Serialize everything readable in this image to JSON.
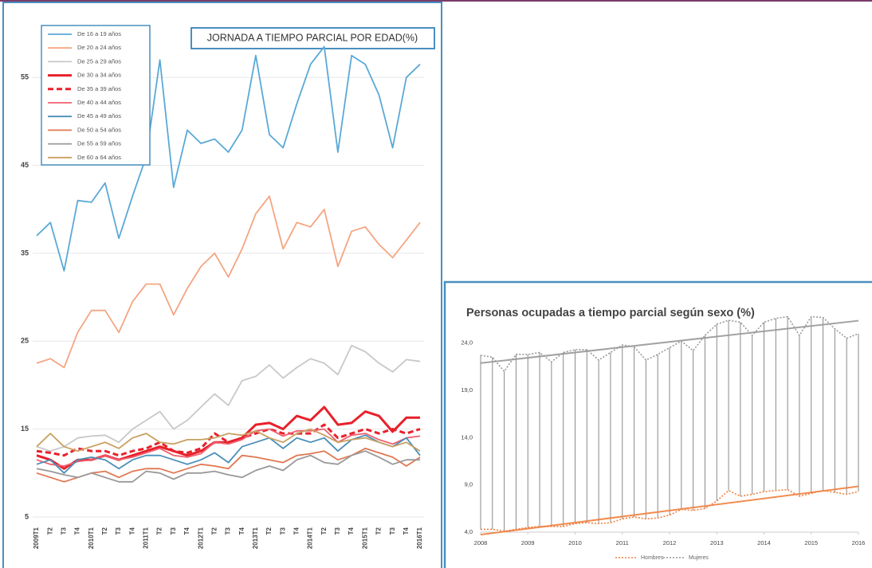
{
  "chart_data": [
    {
      "type": "line",
      "title": "JORNADA A TIEMPO PARCIAL POR EDAD(%)",
      "categories": [
        "2009T1",
        "T2",
        "T3",
        "T4",
        "2010T1",
        "T2",
        "T3",
        "T4",
        "2011T1",
        "T2",
        "T3",
        "T4",
        "2012T1",
        "T2",
        "T3",
        "T4",
        "2013T1",
        "T2",
        "T3",
        "T4",
        "2014T1",
        "T2",
        "T3",
        "T4",
        "2015T1",
        "T2",
        "T3",
        "T4",
        "2016T1"
      ],
      "ylim": [
        4,
        62
      ],
      "yticks": [
        5,
        15,
        25,
        35,
        45,
        55
      ],
      "grid": true,
      "legend": "upper left",
      "series": [
        {
          "name": "De 16 a 19 años",
          "color": "#5aa9d6",
          "values": [
            37,
            38.5,
            33,
            41,
            40.8,
            43,
            36.7,
            41.5,
            46,
            57,
            42.5,
            49,
            47.5,
            48,
            46.5,
            49,
            57.5,
            48.5,
            47,
            52,
            56.5,
            58.5,
            46.5,
            57.5,
            56.5,
            53,
            47,
            55,
            56.5
          ]
        },
        {
          "name": "De 20 a 24 años",
          "color": "#f4a582",
          "values": [
            22.5,
            23,
            22,
            26,
            28.5,
            28.5,
            26,
            29.5,
            31.5,
            31.5,
            28,
            31,
            33.5,
            35,
            32.3,
            35.5,
            39.5,
            41.5,
            35.5,
            38.5,
            38,
            40,
            33.5,
            37.5,
            38,
            36,
            34.5,
            36.5,
            38.5
          ]
        },
        {
          "name": "De 25 a 29 años",
          "color": "#c8c8c8",
          "values": [
            13,
            12.5,
            13,
            14,
            14.2,
            14.3,
            13.5,
            15,
            16,
            17,
            15,
            16,
            17.5,
            19,
            17.7,
            20.5,
            21,
            22.3,
            20.8,
            22,
            23,
            22.5,
            21.2,
            24.5,
            23.8,
            22.5,
            21.5,
            22.9,
            22.7
          ]
        },
        {
          "name": "De 30 a 34 años",
          "color": "#e8202a",
          "width": 3,
          "values": [
            12,
            11.5,
            10.5,
            11.5,
            11.5,
            12,
            11.5,
            12,
            12.5,
            13,
            12.5,
            12,
            12.5,
            13.5,
            13.5,
            14,
            15.5,
            15.7,
            15,
            16.5,
            16,
            17.5,
            15.5,
            15.7,
            17,
            16.5,
            14.7,
            16.3,
            16.3
          ]
        },
        {
          "name": "De 35 a 39 años",
          "color": "#e8202a",
          "width": 3,
          "dashed": true,
          "values": [
            12.5,
            12.3,
            12,
            12.8,
            12.5,
            12.5,
            12,
            12.5,
            12.8,
            13.5,
            12.5,
            12.3,
            12.8,
            14.5,
            13.5,
            14,
            14.5,
            15,
            14.5,
            14.5,
            14.5,
            15.5,
            14,
            14.5,
            15,
            14.5,
            15,
            14.5,
            15
          ]
        },
        {
          "name": "De 40 a 44 años",
          "color": "#f06070",
          "values": [
            11.5,
            11,
            10.8,
            11.3,
            11.5,
            12,
            11.5,
            11.8,
            12.3,
            12.8,
            12,
            11.8,
            12.2,
            13.5,
            13.3,
            13.8,
            14.8,
            15,
            14.2,
            14.8,
            14.8,
            15,
            13.5,
            14.3,
            14.5,
            13.8,
            13.3,
            14,
            14.2
          ]
        },
        {
          "name": "De 45 a 49 años",
          "color": "#4a8fb8",
          "values": [
            11,
            11.5,
            10,
            11.5,
            11.8,
            11.5,
            10.5,
            11.5,
            12,
            12,
            11.5,
            11,
            11.5,
            12.3,
            11.2,
            13,
            13.5,
            14,
            12.8,
            14,
            13.5,
            14,
            12.5,
            13.8,
            14.3,
            13.5,
            13,
            14,
            12
          ]
        },
        {
          "name": "De 50 a 54 años",
          "color": "#e07850",
          "values": [
            10,
            9.5,
            9,
            9.5,
            10,
            10.2,
            9.5,
            10.2,
            10.5,
            10.5,
            10,
            10.5,
            11,
            10.8,
            10.5,
            12,
            11.8,
            11.5,
            11.2,
            12,
            12.2,
            12.5,
            11.5,
            12,
            12.8,
            12.3,
            11.8,
            10.8,
            11.8
          ]
        },
        {
          "name": "De 55 a 59 años",
          "color": "#999999",
          "values": [
            10.5,
            10.2,
            9.8,
            9.5,
            10,
            9.5,
            9,
            9,
            10.2,
            10,
            9.3,
            10,
            10,
            10.2,
            9.8,
            9.5,
            10.3,
            10.8,
            10.3,
            11.5,
            12,
            11.2,
            11,
            12,
            12.5,
            11.8,
            11,
            11.5,
            11.5
          ]
        },
        {
          "name": "De 60 a 64 años",
          "color": "#c8a060",
          "values": [
            13,
            14.5,
            13,
            12.5,
            13,
            13.5,
            12.8,
            14,
            14.5,
            13.5,
            13.3,
            13.8,
            13.8,
            14,
            14.5,
            14.3,
            14.8,
            14,
            13.5,
            14.5,
            15,
            14.3,
            13.5,
            13.8,
            14,
            13.5,
            13,
            13.5,
            12.5
          ]
        }
      ]
    },
    {
      "type": "line",
      "title": "Personas ocupadas a tiempo parcial según sexo (%)",
      "x": [
        2008,
        2008.25,
        2008.5,
        2008.75,
        2009,
        2009.25,
        2009.5,
        2009.75,
        2010,
        2010.25,
        2010.5,
        2010.75,
        2011,
        2011.25,
        2011.5,
        2011.75,
        2012,
        2012.25,
        2012.5,
        2012.75,
        2013,
        2013.25,
        2013.5,
        2013.75,
        2014,
        2014.25,
        2014.5,
        2014.75,
        2015,
        2015.25,
        2015.5,
        2015.75,
        2016
      ],
      "xlim": [
        2008,
        2016
      ],
      "xticks": [
        2008,
        2009,
        2010,
        2011,
        2012,
        2013,
        2014,
        2015,
        2016
      ],
      "ylim": [
        4,
        27
      ],
      "yticks": [
        {
          "value": 4,
          "label": "4,0"
        },
        {
          "value": 9,
          "label": "9,0"
        },
        {
          "value": 14,
          "label": "14,0"
        },
        {
          "value": 19,
          "label": "19,0"
        },
        {
          "value": 24,
          "label": "24,0"
        }
      ],
      "grid": false,
      "drop_lines": true,
      "trendline": true,
      "legend": "bottom",
      "series": [
        {
          "name": "Hombres",
          "color": "#f08040",
          "dotted": true,
          "values": [
            4.3,
            4.3,
            4.1,
            4.3,
            4.5,
            4.6,
            4.6,
            4.6,
            4.9,
            5.0,
            4.9,
            5.0,
            5.4,
            5.6,
            5.4,
            5.5,
            5.8,
            6.4,
            6.3,
            6.5,
            7.3,
            8.4,
            7.8,
            8.0,
            8.3,
            8.4,
            8.5,
            7.8,
            8.1,
            8.4,
            8.2,
            8.0,
            8.3
          ]
        },
        {
          "name": "Mujeres",
          "color": "#999999",
          "dotted": true,
          "values": [
            22.7,
            22.5,
            21.0,
            22.8,
            22.8,
            23.0,
            22.0,
            23.0,
            23.3,
            23.3,
            22.2,
            23.0,
            23.8,
            23.6,
            22.2,
            22.8,
            23.5,
            24.2,
            23.2,
            24.8,
            26.0,
            26.4,
            26.2,
            24.8,
            26.2,
            26.6,
            26.8,
            24.8,
            26.8,
            26.7,
            25.5,
            24.5,
            25.0
          ]
        }
      ]
    }
  ]
}
